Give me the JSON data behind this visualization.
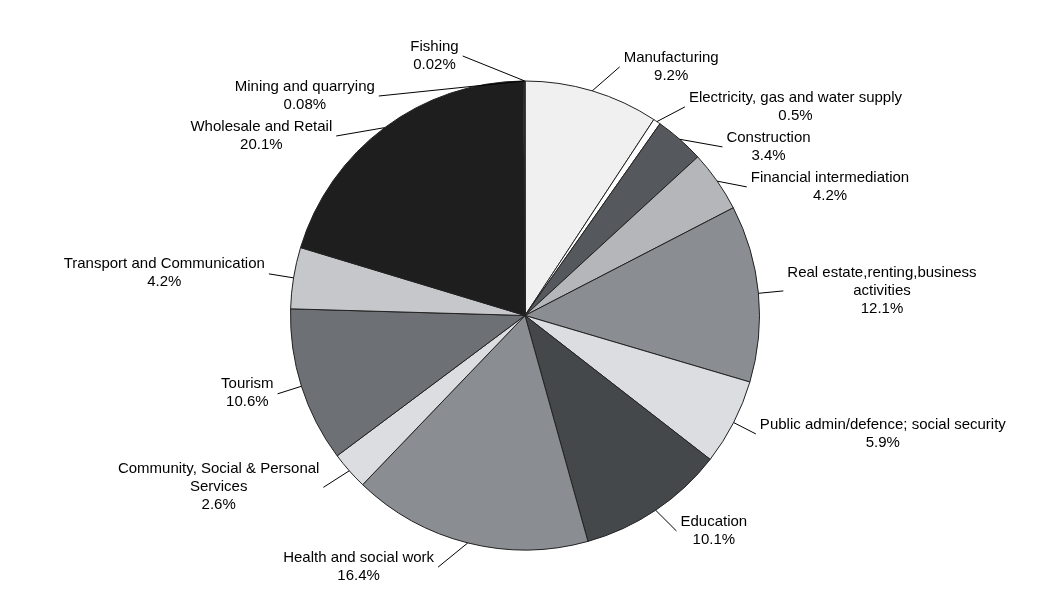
{
  "chart_data": {
    "type": "pie",
    "categories": [
      "Manufacturing",
      "Electricity, gas and water supply",
      "Construction",
      "Financial intermediation",
      "Real estate,renting,business activities",
      "Public admin/defence; social security",
      "Education",
      "Health and social work",
      "Community, Social & Personal Services",
      "Tourism",
      "Transport and Communication",
      "Wholesale and Retail",
      "Mining and quarrying",
      "Fishing"
    ],
    "values": [
      9.2,
      0.5,
      3.4,
      4.2,
      12.1,
      5.9,
      10.1,
      16.4,
      2.6,
      10.6,
      4.2,
      20.1,
      0.08,
      0.02
    ],
    "colors": [
      "#f0f0f0",
      "#ffffff",
      "#55585c",
      "#b4b6b9",
      "#8a8d91",
      "#dcdde0",
      "#45484b",
      "#8a8d91",
      "#dcdde0",
      "#6d7074",
      "#c5c7ca",
      "#1e1e1e",
      "#ffffff",
      "#ffffff"
    ],
    "value_labels": [
      "9.2%",
      "0.5%",
      "3.4%",
      "4.2%",
      "12.1%",
      "5.9%",
      "10.1%",
      "16.4%",
      "2.6%",
      "10.6%",
      "4.2%",
      "20.1%",
      "0.08%",
      "0.02%"
    ],
    "legend": false
  }
}
